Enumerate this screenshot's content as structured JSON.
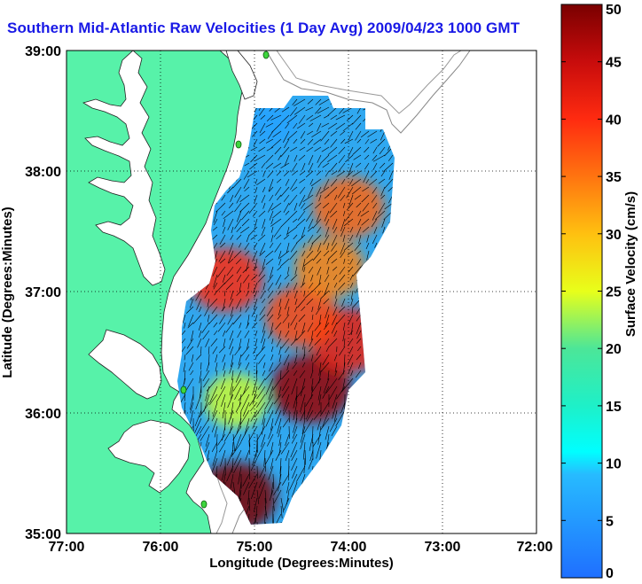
{
  "title": "Southern Mid-Atlantic Raw Velocities (1 Day Avg) 2009/04/23 1000 GMT",
  "chart_data": {
    "type": "heatmap",
    "xlabel": "Longitude (Degrees:Minutes)",
    "ylabel": "Latitude (Degrees:Minutes)",
    "x_ticks": [
      "77:00",
      "76:00",
      "75:00",
      "74:00",
      "73:00",
      "72:00"
    ],
    "y_ticks": [
      "39:00",
      "38:00",
      "37:00",
      "36:00",
      "35:00"
    ],
    "xlim": [
      -77,
      -72
    ],
    "ylim": [
      35,
      39
    ],
    "grid": true,
    "colorbar": {
      "label": "Surface Velocity (cm/s)",
      "ticks": [
        "0",
        "5",
        "10",
        "15",
        "20",
        "25",
        "30",
        "35",
        "40",
        "45",
        "50"
      ],
      "range": [
        0,
        50
      ]
    },
    "velocity_hotspots": [
      {
        "lon": -75.2,
        "lat": 35.3,
        "speed": 50
      },
      {
        "lon": -74.4,
        "lat": 36.2,
        "speed": 48
      },
      {
        "lon": -74.0,
        "lat": 36.6,
        "speed": 42
      },
      {
        "lon": -74.5,
        "lat": 36.8,
        "speed": 38
      },
      {
        "lon": -74.2,
        "lat": 37.2,
        "speed": 34
      },
      {
        "lon": -75.3,
        "lat": 37.1,
        "speed": 40
      },
      {
        "lon": -74.0,
        "lat": 37.7,
        "speed": 36
      },
      {
        "lon": -75.2,
        "lat": 36.1,
        "speed": 24
      },
      {
        "lon": -74.8,
        "lat": 38.4,
        "speed": 6
      }
    ]
  }
}
